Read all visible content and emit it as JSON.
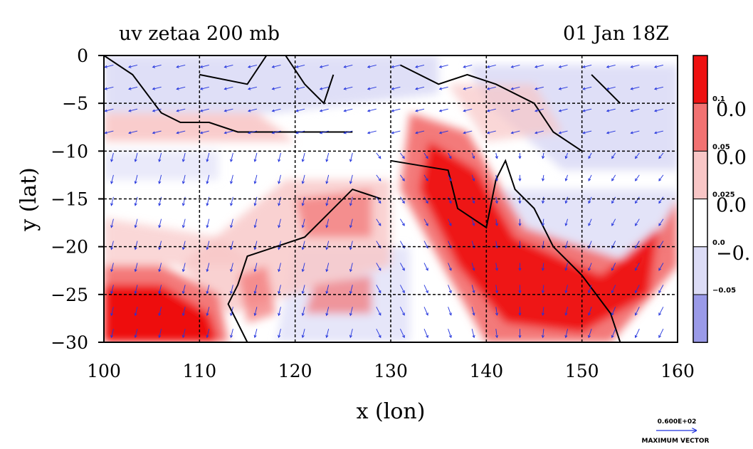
{
  "chart_data": {
    "type": "heatmap",
    "title": "uv zetaa 200 mb",
    "subtitle": "01 Jan 18Z",
    "xlabel": "x (lon)",
    "ylabel": "y (lat)",
    "xlim": [
      100,
      160
    ],
    "ylim": [
      -30,
      0
    ],
    "x_ticks": [
      "100",
      "110",
      "120",
      "130",
      "140",
      "150",
      "160"
    ],
    "y_ticks": [
      "0",
      "−5",
      "−10",
      "−15",
      "−20",
      "−25",
      "−30"
    ],
    "grid": true,
    "colorbar": {
      "placement": "right",
      "levels": [
        {
          "label": "0.1",
          "big_label": "0.0",
          "color": "#ee1111"
        },
        {
          "label": "0.05",
          "big_label": "0.0",
          "color": "#f27272"
        },
        {
          "label": "0.025",
          "big_label": "0.0",
          "color": "#f8c6c6"
        },
        {
          "label": "0.0",
          "big_label": "−0.",
          "color": "#ffffff"
        },
        {
          "label": "−0.05",
          "big_label": "",
          "color": "#dcdcf6"
        }
      ],
      "bottom_color": "#9a9ae8"
    },
    "vector_key": {
      "value_label": "0.600E+02",
      "caption": "MAXIMUM VECTOR"
    },
    "features": [
      {
        "name": "cyclonic vorticity band",
        "lon": [
          132,
          160
        ],
        "lat": [
          -8,
          -30
        ],
        "sign": "positive"
      },
      {
        "name": "vorticity maximum SW",
        "lon": [
          100,
          113
        ],
        "lat": [
          -22,
          -30
        ],
        "sign": "positive"
      }
    ]
  }
}
